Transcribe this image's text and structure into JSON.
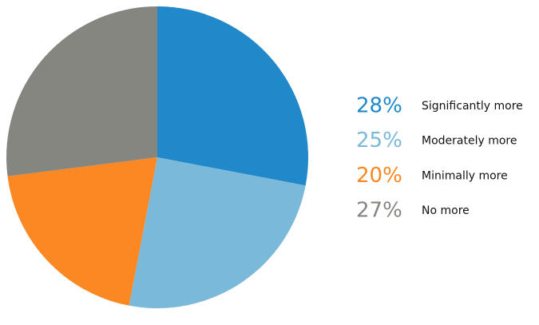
{
  "chart_data": {
    "type": "pie",
    "categories": [
      "Significantly more",
      "Moderately more",
      "Minimally more",
      "No more"
    ],
    "values": [
      28,
      25,
      20,
      27
    ],
    "value_labels": [
      "28%",
      "25%",
      "20%",
      "27%"
    ],
    "colors": [
      "#2188c9",
      "#7bb9da",
      "#fb8823",
      "#868681"
    ]
  }
}
